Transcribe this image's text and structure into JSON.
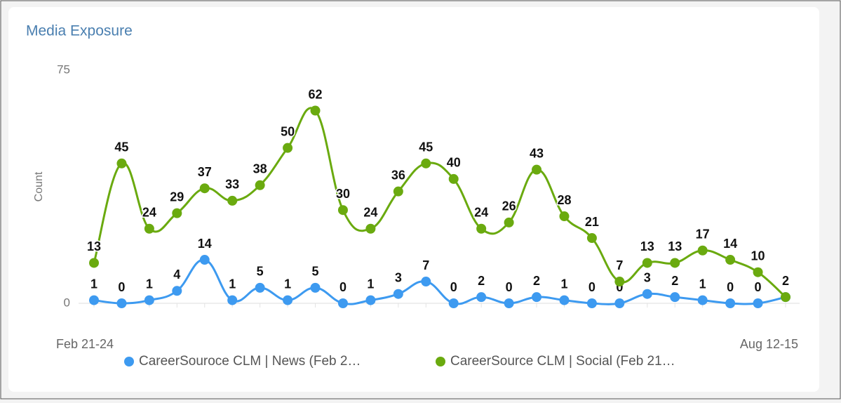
{
  "chart_data": {
    "type": "line",
    "title": "Media Exposure",
    "y_label": "Count",
    "categories": [
      "Feb 21-24",
      null,
      null,
      null,
      null,
      null,
      null,
      null,
      null,
      null,
      null,
      null,
      null,
      null,
      null,
      null,
      null,
      null,
      null,
      null,
      null,
      null,
      null,
      null,
      null,
      "Aug 12-15"
    ],
    "series": [
      {
        "name": "CareerSouroce CLM | News (Feb 2…",
        "color": "#3d9af0",
        "values": [
          1,
          0,
          1,
          4,
          14,
          1,
          5,
          1,
          5,
          0,
          1,
          3,
          7,
          0,
          2,
          0,
          2,
          1,
          0,
          0,
          3,
          2,
          1,
          0,
          0,
          2
        ]
      },
      {
        "name": "CareerSource CLM | Social (Feb 21…",
        "color": "#6aaa0f",
        "values": [
          13,
          45,
          24,
          29,
          37,
          33,
          38,
          50,
          62,
          30,
          24,
          36,
          45,
          40,
          24,
          26,
          43,
          28,
          21,
          7,
          13,
          13,
          17,
          14,
          10,
          2
        ]
      }
    ],
    "ylim": [
      0,
      75
    ],
    "yticks": [
      0,
      75
    ],
    "legend": "bottom"
  }
}
